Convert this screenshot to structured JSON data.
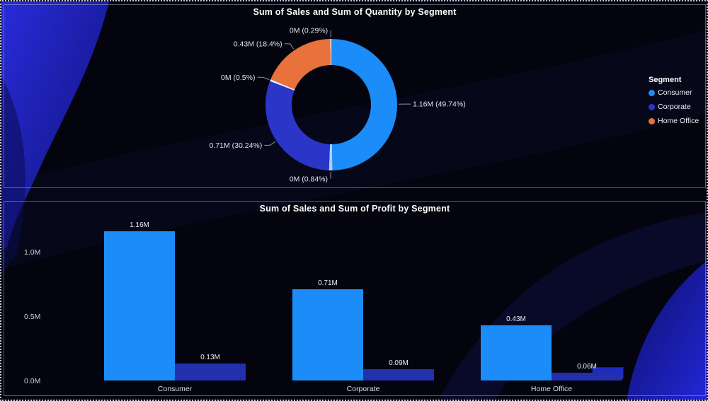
{
  "canvas": {
    "background_base": "#04040F",
    "swoosh_color": "#2A2DE0"
  },
  "chart_data": [
    {
      "type": "pie",
      "subtype": "donut",
      "title": "Sum of Sales and Sum of Quantity by Segment",
      "legend": {
        "title": "Segment",
        "position": "right",
        "items": [
          {
            "label": "Consumer",
            "color": "#1E8CF5"
          },
          {
            "label": "Corporate",
            "color": "#2B35C7"
          },
          {
            "label": "Home Office",
            "color": "#E8713C"
          }
        ]
      },
      "slices": [
        {
          "segment": "Consumer",
          "measure": "Sum of Sales",
          "pct": 49.74,
          "label": "1.16M (49.74%)",
          "color": "#1B8CF8"
        },
        {
          "segment": "Consumer",
          "measure": "Sum of Quantity",
          "pct": 0.84,
          "label": "0M (0.84%)",
          "color": "#A6D4FF"
        },
        {
          "segment": "Corporate",
          "measure": "Sum of Sales",
          "pct": 30.24,
          "label": "0.71M (30.24%)",
          "color": "#2B35C7"
        },
        {
          "segment": "Corporate",
          "measure": "Sum of Quantity",
          "pct": 0.5,
          "label": "0M (0.5%)",
          "color": "#E6ECFA"
        },
        {
          "segment": "Home Office",
          "measure": "Sum of Sales",
          "pct": 18.4,
          "label": "0.43M (18.4%)",
          "color": "#E8713C"
        },
        {
          "segment": "Home Office",
          "measure": "Sum of Quantity",
          "pct": 0.29,
          "label": "0M (0.29%)",
          "color": "#F2E6DC"
        }
      ]
    },
    {
      "type": "bar",
      "title": "Sum of Sales and Sum of Profit by Segment",
      "categories": [
        "Consumer",
        "Corporate",
        "Home Office"
      ],
      "series": [
        {
          "name": "Sum of Sales",
          "color": "#1B8CF8",
          "values": [
            1.16,
            0.71,
            0.43
          ],
          "value_labels": [
            "1.16M",
            "0.71M",
            "0.43M"
          ]
        },
        {
          "name": "Sum of Profit",
          "color": "#2230AE",
          "values": [
            0.13,
            0.09,
            0.06
          ],
          "value_labels": [
            "0.13M",
            "0.09M",
            "0.06M"
          ]
        }
      ],
      "y_ticks": [
        {
          "label": "0.0M",
          "value": 0
        },
        {
          "label": "0.5M",
          "value": 0.5
        },
        {
          "label": "1.0M",
          "value": 1.0
        }
      ],
      "ylim": [
        0,
        1.2
      ],
      "grid": false
    }
  ]
}
